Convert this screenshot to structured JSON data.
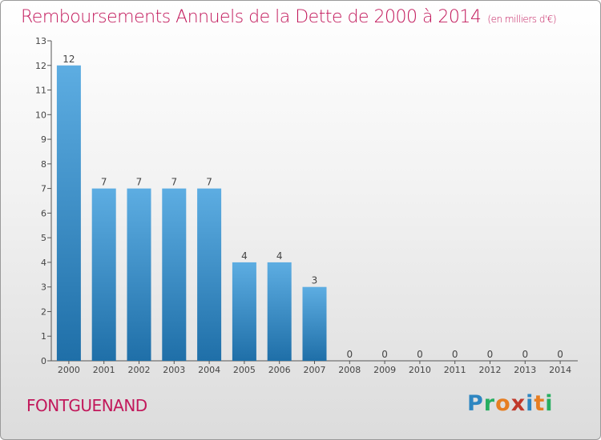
{
  "header": {
    "title": "Remboursements Annuels de la Dette de 2000 à 2014",
    "unit": "(en milliers d'€)"
  },
  "footer": {
    "place": "FONTGUENAND",
    "logo": "Proxiti"
  },
  "colors": {
    "title": "#c2185b",
    "bar_top": "#5dade2",
    "bar_bottom": "#1f6fa8"
  },
  "chart_data": {
    "type": "bar",
    "title": "Remboursements Annuels de la Dette de 2000 à 2014",
    "subtitle": "(en milliers d'€)",
    "categories": [
      "2000",
      "2001",
      "2002",
      "2003",
      "2004",
      "2005",
      "2006",
      "2007",
      "2008",
      "2009",
      "2010",
      "2011",
      "2012",
      "2013",
      "2014"
    ],
    "values": [
      12,
      7,
      7,
      7,
      7,
      4,
      4,
      3,
      0,
      0,
      0,
      0,
      0,
      0,
      0
    ],
    "ylim": [
      0,
      13
    ],
    "yticks": [
      0,
      1,
      2,
      3,
      4,
      5,
      6,
      7,
      8,
      9,
      10,
      11,
      12,
      13
    ],
    "grid": false,
    "xlabel": "",
    "ylabel": ""
  }
}
